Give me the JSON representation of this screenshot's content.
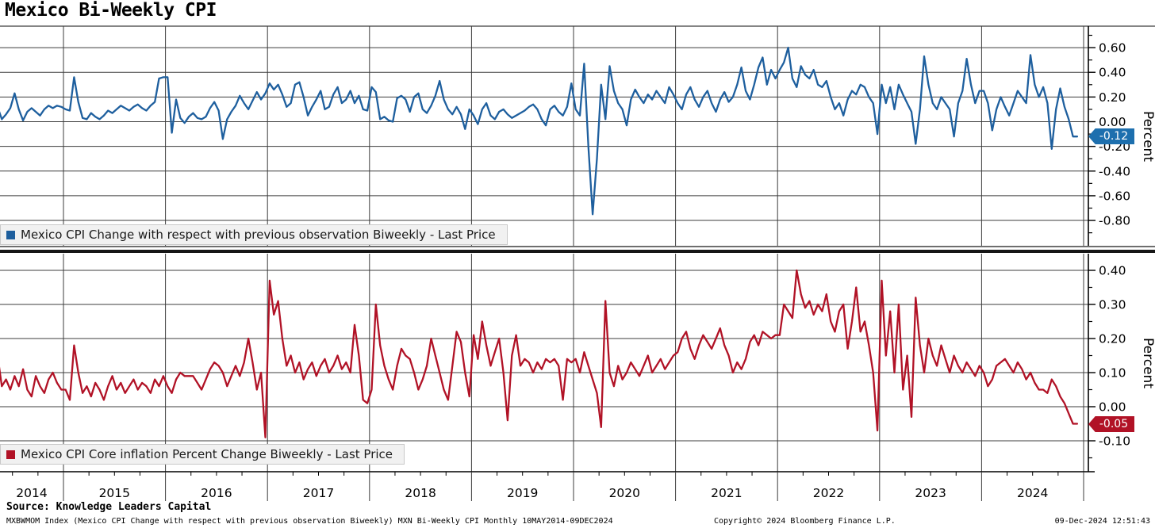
{
  "header": {
    "title": "Mexico Bi-Weekly CPI"
  },
  "panels": [
    {
      "legend_label": "Mexico CPI Change with respect with previous observation Biweekly - Last Price",
      "last_price_label": "-0.12",
      "axis_label": "Percent",
      "line_color": "#1e5f9e",
      "badge_color": "#1d6fae"
    },
    {
      "legend_label": "Mexico CPI Core inflation Percent Change Biweekly - Last Price",
      "last_price_label": "-0.05",
      "axis_label": "Percent",
      "line_color": "#b11226",
      "badge_color": "#b11226"
    }
  ],
  "x_axis": {
    "year_labels": [
      "2014",
      "2015",
      "2016",
      "2017",
      "2018",
      "2019",
      "2020",
      "2021",
      "2022",
      "2023",
      "2024"
    ]
  },
  "footer": {
    "source_line": "Source: Knowledge Leaders Capital",
    "ticker_line": "MXBWMOM Index (Mexico CPI Change with respect with previous observation Biweekly) MXN Bi-Weekly CPI  Monthly 10MAY2014-09DEC2024",
    "copyright": "Copyright© 2024 Bloomberg Finance L.P.",
    "timestamp": "09-Dec-2024 12:51:43"
  },
  "chart_data": [
    {
      "type": "line",
      "title": "Mexico CPI Change with respect with previous observation Biweekly - Last Price",
      "ylabel": "Percent",
      "color": "#1e5f9e",
      "x_start": 2014.354,
      "x_step": 0.0416667,
      "x_range": [
        2014.354,
        2024.937
      ],
      "ylim": [
        -1.0,
        0.77
      ],
      "y_gridlines": [
        0.6,
        0.4,
        0.2,
        0.0,
        -0.2,
        -0.4,
        -0.6,
        -0.8
      ],
      "y_minor_step": 0.1,
      "last_price": -0.12,
      "values": [
        0.12,
        0.02,
        0.06,
        0.11,
        0.23,
        0.1,
        0.01,
        0.08,
        0.11,
        0.08,
        0.05,
        0.1,
        0.13,
        0.11,
        0.13,
        0.12,
        0.1,
        0.09,
        0.36,
        0.16,
        0.03,
        0.02,
        0.07,
        0.04,
        0.02,
        0.05,
        0.09,
        0.07,
        0.1,
        0.13,
        0.11,
        0.09,
        0.12,
        0.14,
        0.11,
        0.09,
        0.13,
        0.16,
        0.35,
        0.36,
        0.36,
        -0.09,
        0.18,
        0.03,
        -0.01,
        0.04,
        0.07,
        0.03,
        0.02,
        0.04,
        0.11,
        0.16,
        0.09,
        -0.14,
        0.02,
        0.08,
        0.13,
        0.21,
        0.15,
        0.1,
        0.17,
        0.24,
        0.18,
        0.23,
        0.31,
        0.26,
        0.3,
        0.22,
        0.12,
        0.15,
        0.3,
        0.32,
        0.2,
        0.05,
        0.12,
        0.18,
        0.25,
        0.1,
        0.12,
        0.22,
        0.28,
        0.15,
        0.18,
        0.25,
        0.15,
        0.21,
        0.1,
        0.09,
        0.28,
        0.24,
        0.02,
        0.04,
        0.01,
        0.0,
        0.19,
        0.21,
        0.18,
        0.08,
        0.2,
        0.23,
        0.1,
        0.07,
        0.13,
        0.21,
        0.33,
        0.18,
        0.1,
        0.06,
        0.12,
        0.06,
        -0.06,
        0.1,
        0.05,
        -0.02,
        0.1,
        0.15,
        0.05,
        0.02,
        0.08,
        0.1,
        0.06,
        0.03,
        0.05,
        0.07,
        0.09,
        0.12,
        0.14,
        0.1,
        0.02,
        -0.03,
        0.1,
        0.13,
        0.08,
        0.05,
        0.12,
        0.31,
        0.1,
        0.05,
        0.47,
        -0.2,
        -0.75,
        -0.3,
        0.3,
        0.02,
        0.45,
        0.25,
        0.15,
        0.1,
        -0.03,
        0.18,
        0.26,
        0.2,
        0.15,
        0.22,
        0.18,
        0.25,
        0.2,
        0.15,
        0.28,
        0.22,
        0.15,
        0.1,
        0.22,
        0.28,
        0.18,
        0.12,
        0.2,
        0.25,
        0.15,
        0.08,
        0.18,
        0.24,
        0.16,
        0.2,
        0.3,
        0.44,
        0.25,
        0.18,
        0.3,
        0.44,
        0.52,
        0.3,
        0.42,
        0.35,
        0.42,
        0.48,
        0.6,
        0.35,
        0.28,
        0.45,
        0.38,
        0.35,
        0.42,
        0.3,
        0.28,
        0.33,
        0.2,
        0.1,
        0.15,
        0.05,
        0.18,
        0.25,
        0.22,
        0.3,
        0.28,
        0.2,
        0.15,
        -0.1,
        0.3,
        0.15,
        0.28,
        0.1,
        0.3,
        0.22,
        0.15,
        0.08,
        -0.18,
        0.1,
        0.53,
        0.3,
        0.15,
        0.1,
        0.2,
        0.15,
        0.1,
        -0.12,
        0.15,
        0.25,
        0.51,
        0.3,
        0.15,
        0.25,
        0.25,
        0.15,
        -0.07,
        0.1,
        0.2,
        0.12,
        0.05,
        0.15,
        0.25,
        0.2,
        0.15,
        0.54,
        0.3,
        0.2,
        0.28,
        0.15,
        -0.22,
        0.1,
        0.27,
        0.12,
        0.02,
        -0.12,
        -0.12
      ]
    },
    {
      "type": "line",
      "title": "Mexico CPI Core inflation Percent Change Biweekly - Last Price",
      "ylabel": "Percent",
      "color": "#b11226",
      "x_start": 2014.354,
      "x_step": 0.0416667,
      "x_range": [
        2014.354,
        2024.937
      ],
      "ylim": [
        -0.19,
        0.45
      ],
      "y_gridlines": [
        0.4,
        0.3,
        0.2,
        0.1,
        0.0,
        -0.1
      ],
      "y_minor_step": 0.05,
      "last_price": -0.05,
      "values": [
        0.15,
        0.06,
        0.08,
        0.05,
        0.09,
        0.06,
        0.11,
        0.05,
        0.03,
        0.09,
        0.06,
        0.04,
        0.08,
        0.1,
        0.07,
        0.05,
        0.05,
        0.02,
        0.18,
        0.1,
        0.04,
        0.06,
        0.03,
        0.07,
        0.05,
        0.02,
        0.06,
        0.09,
        0.05,
        0.07,
        0.04,
        0.06,
        0.08,
        0.05,
        0.07,
        0.06,
        0.04,
        0.08,
        0.06,
        0.09,
        0.06,
        0.04,
        0.08,
        0.1,
        0.09,
        0.09,
        0.09,
        0.07,
        0.05,
        0.08,
        0.11,
        0.13,
        0.12,
        0.1,
        0.06,
        0.09,
        0.12,
        0.09,
        0.13,
        0.2,
        0.13,
        0.05,
        0.1,
        -0.09,
        0.37,
        0.27,
        0.31,
        0.2,
        0.12,
        0.15,
        0.1,
        0.13,
        0.08,
        0.11,
        0.13,
        0.09,
        0.12,
        0.14,
        0.1,
        0.12,
        0.15,
        0.11,
        0.13,
        0.1,
        0.24,
        0.15,
        0.02,
        0.01,
        0.05,
        0.3,
        0.18,
        0.12,
        0.08,
        0.05,
        0.12,
        0.17,
        0.15,
        0.14,
        0.1,
        0.05,
        0.08,
        0.12,
        0.2,
        0.15,
        0.1,
        0.05,
        0.02,
        0.12,
        0.22,
        0.19,
        0.1,
        0.03,
        0.21,
        0.14,
        0.25,
        0.18,
        0.12,
        0.16,
        0.2,
        0.1,
        -0.04,
        0.15,
        0.21,
        0.12,
        0.14,
        0.13,
        0.1,
        0.13,
        0.11,
        0.14,
        0.13,
        0.14,
        0.12,
        0.02,
        0.14,
        0.13,
        0.14,
        0.1,
        0.16,
        0.12,
        0.08,
        0.04,
        -0.06,
        0.31,
        0.1,
        0.06,
        0.12,
        0.08,
        0.1,
        0.13,
        0.11,
        0.09,
        0.12,
        0.15,
        0.1,
        0.12,
        0.14,
        0.11,
        0.13,
        0.15,
        0.16,
        0.2,
        0.22,
        0.17,
        0.14,
        0.18,
        0.21,
        0.19,
        0.17,
        0.2,
        0.23,
        0.18,
        0.15,
        0.1,
        0.13,
        0.11,
        0.14,
        0.19,
        0.21,
        0.18,
        0.22,
        0.21,
        0.2,
        0.21,
        0.21,
        0.3,
        0.28,
        0.26,
        0.4,
        0.33,
        0.29,
        0.31,
        0.27,
        0.3,
        0.28,
        0.33,
        0.25,
        0.22,
        0.28,
        0.3,
        0.17,
        0.25,
        0.35,
        0.22,
        0.25,
        0.18,
        0.1,
        -0.07,
        0.37,
        0.15,
        0.28,
        0.1,
        0.3,
        0.05,
        0.15,
        -0.03,
        0.32,
        0.18,
        0.1,
        0.2,
        0.15,
        0.12,
        0.18,
        0.14,
        0.1,
        0.15,
        0.12,
        0.1,
        0.13,
        0.11,
        0.09,
        0.12,
        0.1,
        0.06,
        0.08,
        0.12,
        0.13,
        0.14,
        0.12,
        0.1,
        0.13,
        0.11,
        0.08,
        0.1,
        0.07,
        0.05,
        0.05,
        0.04,
        0.08,
        0.06,
        0.03,
        0.01,
        -0.02,
        -0.05,
        -0.05
      ]
    }
  ]
}
